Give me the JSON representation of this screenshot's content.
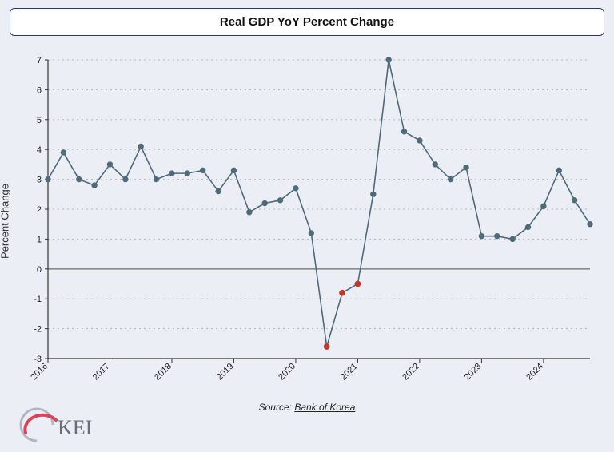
{
  "title": "Real GDP YoY Percent Change",
  "ylabel": "Percent Change",
  "source_prefix": "Source: ",
  "source_name": "Bank of Korea",
  "logo_text": "KEI",
  "chart": {
    "type": "line",
    "background_color": "#eceef5",
    "plot_background": "#eceef5",
    "grid_color": "#b8b8b8",
    "grid_dash": "2,4",
    "zero_line_color": "#8a8a8a",
    "zero_line_width": 1.6,
    "axis_color": "#333333",
    "line_color": "#4f6b7a",
    "line_width": 1.6,
    "marker_color": "#4f6b7a",
    "marker_radius": 3.2,
    "highlight_color": "#c0392b",
    "highlight_radius": 3.4,
    "ylim": [
      -3,
      7
    ],
    "ytick_step": 1,
    "xtick_years": [
      2016,
      2017,
      2018,
      2019,
      2020,
      2021,
      2022,
      2023,
      2024
    ],
    "x_start_year": 2016.0,
    "x_end_year": 2024.75,
    "x_step": 0.25,
    "values": [
      3.0,
      3.9,
      3.0,
      2.8,
      3.5,
      3.0,
      4.1,
      3.0,
      3.2,
      3.2,
      3.3,
      2.6,
      3.3,
      1.9,
      2.2,
      2.3,
      2.7,
      1.2,
      -2.6,
      -0.8,
      -0.5,
      2.5,
      7.0,
      4.6,
      4.3,
      3.5,
      3.0,
      3.4,
      1.1,
      1.1,
      1.0,
      1.4,
      2.1,
      3.3,
      2.3,
      1.5
    ],
    "highlight_indices": [
      18,
      19,
      20
    ],
    "label_fontsize": 13,
    "tick_fontsize": 11,
    "title_fontsize": 15
  },
  "logo": {
    "ring_outer_color": "#b0b6c4",
    "ring_inner_color": "#d9445a",
    "text_color": "#6b6e78"
  }
}
